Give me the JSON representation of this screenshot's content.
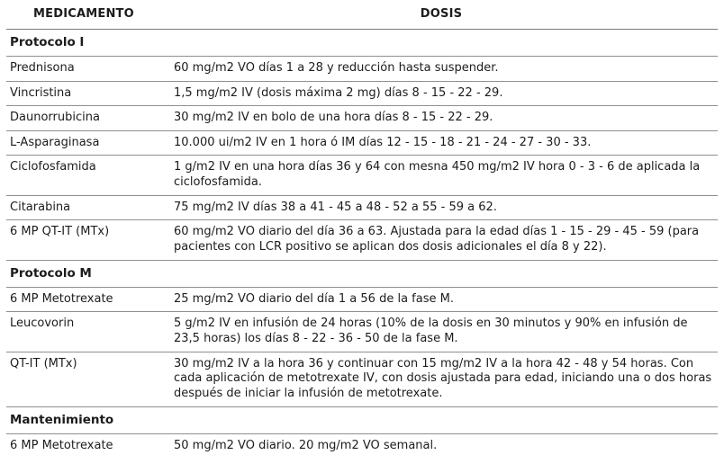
{
  "table": {
    "headers": {
      "medicamento": "MEDICAMENTO",
      "dosis": "DOSIS"
    },
    "sections": [
      {
        "title": "Protocolo I",
        "rows": [
          {
            "med": "Prednisona",
            "dose": "60 mg/m2 VO días 1 a 28 y reducción hasta suspender."
          },
          {
            "med": "Vincristina",
            "dose": "1,5 mg/m2 IV (dosis máxima 2 mg) días 8 - 15 - 22 - 29."
          },
          {
            "med": "Daunorrubicina",
            "dose": "30 mg/m2 IV en bolo de una hora días 8 - 15 - 22 - 29."
          },
          {
            "med": "L-Asparaginasa",
            "dose": "10.000 ui/m2 IV en 1 hora ó IM días 12 - 15 - 18 - 21 - 24 - 27 - 30 - 33."
          },
          {
            "med": "Ciclofosfamida",
            "dose": "1 g/m2 IV en una hora días 36 y 64 con mesna 450 mg/m2 IV hora 0 - 3 - 6 de aplicada la ciclofosfamida."
          },
          {
            "med": "Citarabina",
            "dose": "75 mg/m2 IV días 38 a 41 - 45 a 48 - 52 a 55 - 59 a 62."
          },
          {
            "med": "6 MP QT-IT (MTx)",
            "dose": "60 mg/m2 VO diario del día 36 a 63. Ajustada para la edad días 1 - 15 - 29 - 45 - 59 (para pacientes con LCR positivo se aplican dos dosis adicionales el día 8 y 22)."
          }
        ]
      },
      {
        "title": "Protocolo M",
        "rows": [
          {
            "med": "6 MP Metotrexate",
            "dose": "25 mg/m2 VO diario del día 1 a 56 de la fase M."
          },
          {
            "med": "Leucovorin",
            "dose": "5 g/m2 IV en infusión de 24 horas (10% de la dosis en 30 minutos y 90% en infusión de 23,5 horas) los días 8 - 22 - 36 - 50 de la fase M."
          },
          {
            "med": "QT-IT (MTx)",
            "dose": "30 mg/m2 IV a la hora 36 y continuar con 15 mg/m2 IV a la hora 42 - 48 y 54 horas. Con cada aplicación de metotrexate IV, con dosis ajustada para edad, iniciando una o dos horas después de iniciar la infusión de metotrexate."
          }
        ]
      },
      {
        "title": "Mantenimiento",
        "rows": [
          {
            "med": "6 MP Metotrexate",
            "dose": "50 mg/m2 VO diario. 20 mg/m2 VO semanal."
          }
        ]
      }
    ]
  }
}
